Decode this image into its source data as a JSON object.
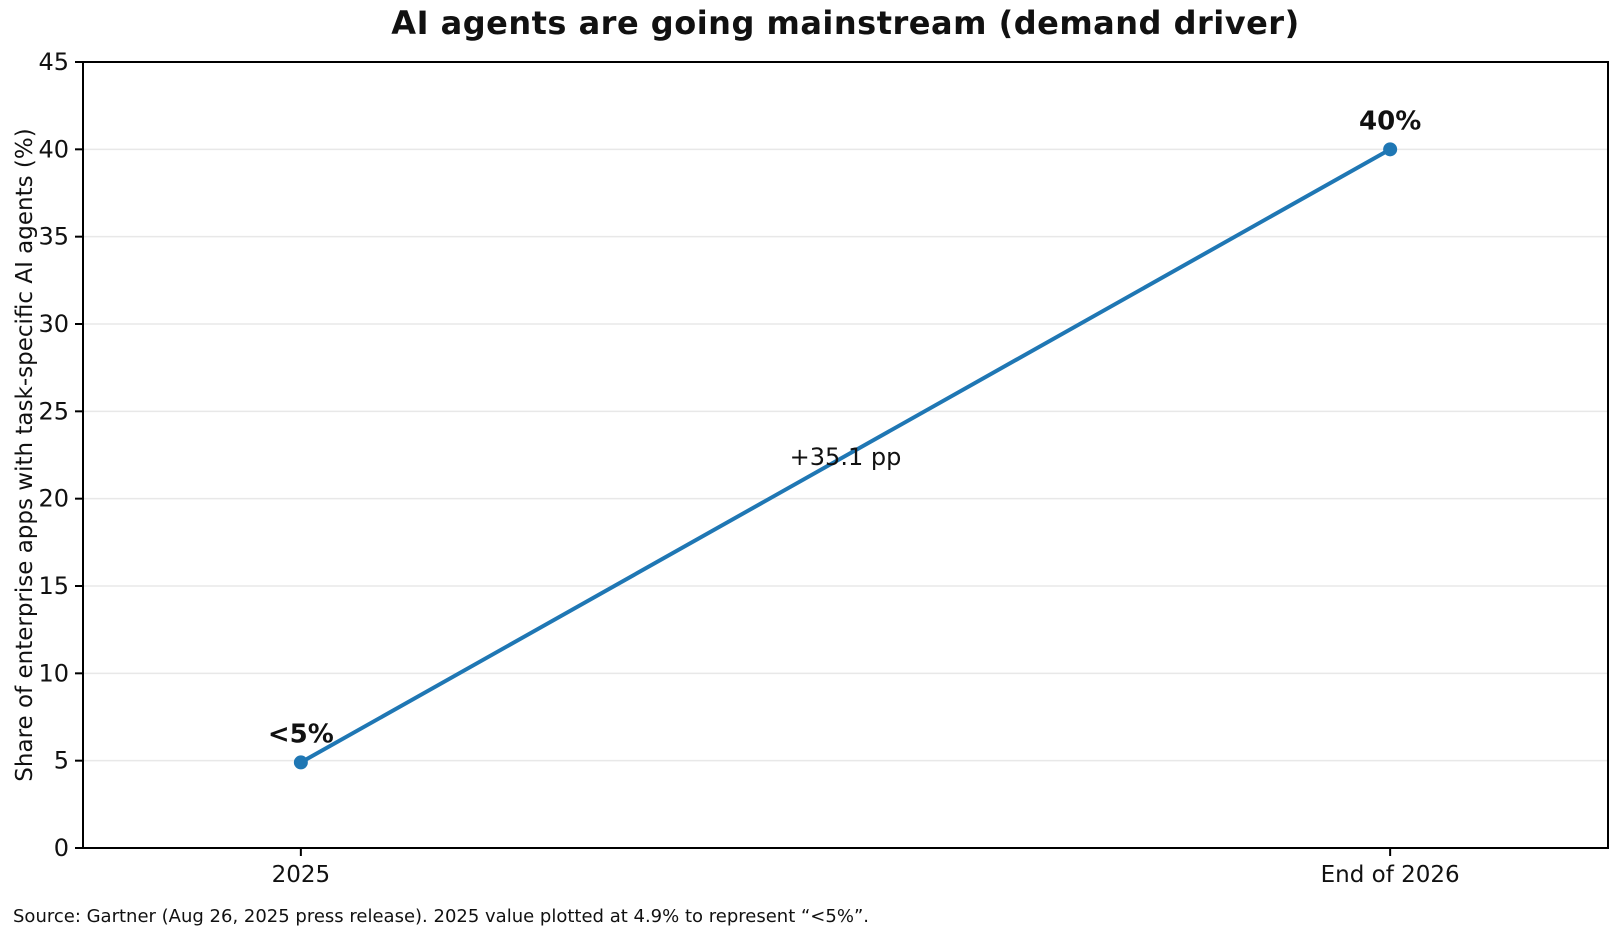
{
  "figure": {
    "title": "AI agents are going mainstream (demand driver)",
    "source_note": "Source: Gartner (Aug 26, 2025 press release). 2025 value plotted at 4.9% to represent “<5%”."
  },
  "chart_data": {
    "type": "line",
    "title": "AI agents are going mainstream (demand driver)",
    "xlabel": "",
    "ylabel": "Share of enterprise apps with task-specific AI agents (%)",
    "categories": [
      "2025",
      "End of 2026"
    ],
    "x": [
      0,
      1
    ],
    "values": [
      4.9,
      40
    ],
    "point_labels": [
      "<5%",
      "40%"
    ],
    "segment_annotation": "+35.1 pp",
    "xlim": [
      -0.2,
      1.2
    ],
    "ylim": [
      0,
      45
    ],
    "yticks": [
      0,
      5,
      10,
      15,
      20,
      25,
      30,
      35,
      40,
      45
    ],
    "grid": "horizontal-only",
    "legend": "none",
    "line_color": "#1f77b4",
    "marker": "circle",
    "grid_color": "#e8e8e8",
    "axis_color": "#000000",
    "text_color": "#111111"
  }
}
